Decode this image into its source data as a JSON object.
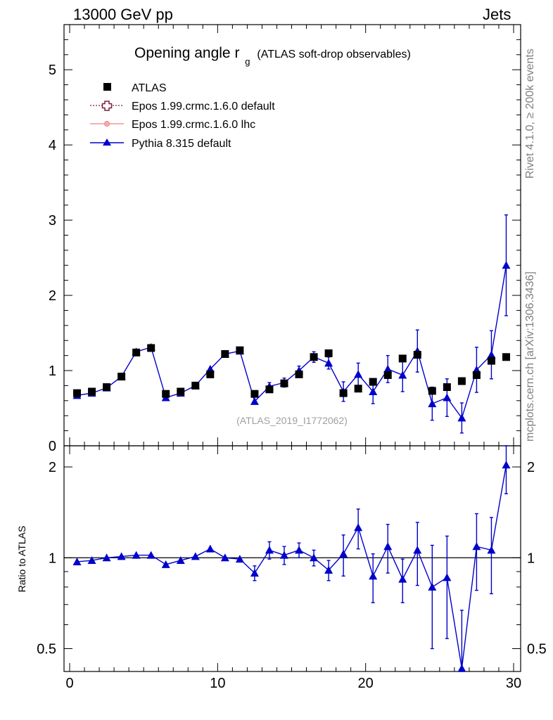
{
  "header": {
    "left": "13000 GeV pp",
    "right": "Jets"
  },
  "side": {
    "rivet": "Rivet 4.1.0, ≥ 200k events",
    "source": "mcplots.cern.ch [arXiv:1306.3436]"
  },
  "colors": {
    "atlas": "#000000",
    "epos_default": "#7f1f3f",
    "epos_lhc": "#f08080",
    "pythia": "#0000cc",
    "tag": "#a0a0a0"
  },
  "chart_data": [
    {
      "type": "scatter",
      "panel": "main",
      "title": "Opening angle r",
      "title_sub": "g",
      "title_suffix": "(ATLAS soft-drop observables)",
      "analysis_tag": "(ATLAS_2019_I1772062)",
      "xlim": [
        0,
        30
      ],
      "ylim": [
        0,
        5.6
      ],
      "yticks": [
        0,
        1,
        2,
        3,
        4,
        5
      ],
      "ytick_labels": [
        "0",
        "1",
        "2",
        "3",
        "4",
        "5"
      ],
      "legend": [
        {
          "name": "ATLAS",
          "marker": "square"
        },
        {
          "name": "Epos 1.99.crmc.1.6.0 default",
          "marker": "open-cross"
        },
        {
          "name": "Epos 1.99.crmc.1.6.0 lhc",
          "marker": "small-circle"
        },
        {
          "name": "Pythia 8.315 default",
          "marker": "triangle"
        }
      ],
      "series": [
        {
          "name": "ATLAS",
          "x": [
            0.5,
            1.5,
            2.5,
            3.5,
            4.5,
            5.5,
            6.5,
            7.5,
            8.5,
            9.5,
            10.5,
            11.5,
            12.5,
            13.5,
            14.5,
            15.5,
            16.5,
            17.5,
            18.5,
            19.5,
            20.5,
            21.5,
            22.5,
            23.5,
            24.5,
            25.5,
            26.5,
            27.5,
            28.5,
            29.5
          ],
          "values": [
            0.7,
            0.72,
            0.78,
            0.92,
            1.24,
            1.3,
            0.69,
            0.72,
            0.8,
            0.95,
            1.22,
            1.27,
            0.69,
            0.75,
            0.83,
            0.95,
            1.18,
            1.23,
            0.7,
            0.76,
            0.85,
            0.94,
            1.16,
            1.21,
            0.73,
            0.78,
            0.86,
            0.94,
            1.13,
            1.18
          ]
        },
        {
          "name": "Pythia 8.315 default",
          "x": [
            0.5,
            1.5,
            2.5,
            3.5,
            4.5,
            5.5,
            6.5,
            7.5,
            8.5,
            9.5,
            10.5,
            11.5,
            12.5,
            13.5,
            14.5,
            15.5,
            16.5,
            17.5,
            18.5,
            19.5,
            20.5,
            21.5,
            22.5,
            23.5,
            24.5,
            25.5,
            26.5,
            27.5,
            28.5,
            29.5
          ],
          "values": [
            0.67,
            0.7,
            0.77,
            0.92,
            1.25,
            1.31,
            0.64,
            0.7,
            0.8,
            1.02,
            1.22,
            1.26,
            0.59,
            0.79,
            0.84,
            1.0,
            1.18,
            1.1,
            0.72,
            0.95,
            0.72,
            1.02,
            0.94,
            1.26,
            0.56,
            0.64,
            0.37,
            1.01,
            1.21,
            2.4
          ],
          "err": [
            0.02,
            0.02,
            0.02,
            0.03,
            0.03,
            0.03,
            0.02,
            0.02,
            0.02,
            0.03,
            0.03,
            0.03,
            0.03,
            0.05,
            0.06,
            0.06,
            0.07,
            0.08,
            0.13,
            0.15,
            0.16,
            0.18,
            0.22,
            0.28,
            0.22,
            0.25,
            0.2,
            0.3,
            0.32,
            0.67
          ]
        }
      ]
    },
    {
      "type": "line",
      "panel": "ratio",
      "ylabel": "Ratio to ATLAS",
      "xlabel": "",
      "xlim": [
        0,
        30
      ],
      "ylim": [
        0.42,
        2.35
      ],
      "xticks": [
        0,
        10,
        20,
        30
      ],
      "xtick_labels": [
        "0",
        "10",
        "20",
        "30"
      ],
      "yticks": [
        0.5,
        1,
        2
      ],
      "ytick_labels": [
        "0.5",
        "1",
        "2"
      ],
      "reference": 1,
      "series": [
        {
          "name": "Pythia 8.315 default",
          "x": [
            0.5,
            1.5,
            2.5,
            3.5,
            4.5,
            5.5,
            6.5,
            7.5,
            8.5,
            9.5,
            10.5,
            11.5,
            12.5,
            13.5,
            14.5,
            15.5,
            16.5,
            17.5,
            18.5,
            19.5,
            20.5,
            21.5,
            22.5,
            23.5,
            24.5,
            25.5,
            26.5,
            27.5,
            28.5,
            29.5
          ],
          "values": [
            0.97,
            0.98,
            1.0,
            1.01,
            1.02,
            1.02,
            0.95,
            0.98,
            1.01,
            1.07,
            1.0,
            0.99,
            0.89,
            1.06,
            1.02,
            1.06,
            1.0,
            0.91,
            1.03,
            1.26,
            0.87,
            1.09,
            0.85,
            1.06,
            0.8,
            0.86,
            0.43,
            1.09,
            1.06,
            2.03
          ],
          "err": [
            0.01,
            0.01,
            0.01,
            0.01,
            0.02,
            0.02,
            0.02,
            0.02,
            0.02,
            0.02,
            0.02,
            0.03,
            0.05,
            0.07,
            0.07,
            0.06,
            0.06,
            0.07,
            0.16,
            0.19,
            0.16,
            0.2,
            0.14,
            0.25,
            0.3,
            0.32,
            0.24,
            0.31,
            0.3,
            0.4
          ]
        }
      ]
    }
  ]
}
